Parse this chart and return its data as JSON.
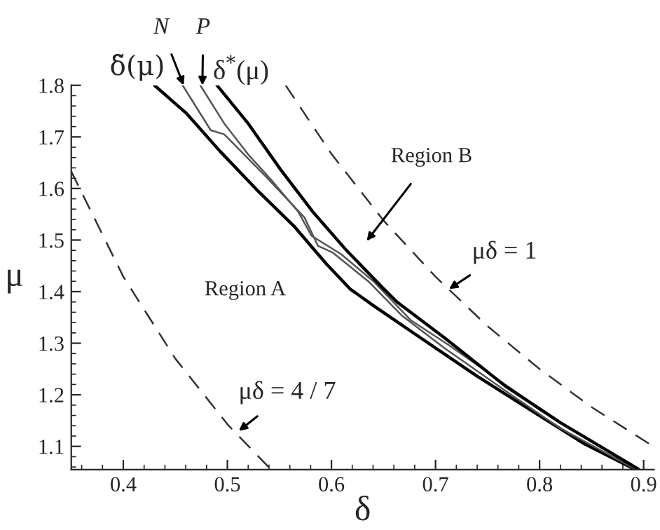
{
  "chart_data": {
    "type": "line",
    "xlabel": "δ",
    "ylabel": "μ",
    "xlim": [
      0.35,
      0.91
    ],
    "ylim": [
      1.055,
      1.8
    ],
    "xticks": [
      0.4,
      0.5,
      0.6,
      0.7,
      0.8,
      0.9
    ],
    "yticks": [
      1.1,
      1.2,
      1.3,
      1.4,
      1.5,
      1.6,
      1.7,
      1.8
    ],
    "grid": false,
    "legend": false,
    "marker": "none",
    "series": [
      {
        "color": "#000000",
        "line_style": "solid",
        "x": [
          0.43,
          0.461,
          0.493,
          0.528,
          0.564,
          0.595,
          0.618,
          0.641,
          0.686,
          0.74,
          0.798,
          0.843,
          0.891
        ],
        "values": [
          1.8,
          1.745,
          1.672,
          1.598,
          1.527,
          1.454,
          1.405,
          1.372,
          1.31,
          1.236,
          1.162,
          1.105,
          1.056
        ]
      },
      {
        "color": "#555555",
        "line_style": "solid",
        "x": [
          0.457,
          0.484,
          0.497,
          0.537,
          0.574,
          0.587,
          0.601,
          0.636,
          0.668,
          0.709,
          0.767,
          0.82,
          0.892
        ],
        "values": [
          1.8,
          1.713,
          1.705,
          1.623,
          1.544,
          1.489,
          1.476,
          1.419,
          1.353,
          1.29,
          1.208,
          1.135,
          1.056
        ]
      },
      {
        "color": "#555555",
        "line_style": "solid",
        "x": [
          0.474,
          0.497,
          0.52,
          0.542,
          0.568,
          0.581,
          0.609,
          0.641,
          0.676,
          0.713,
          0.771,
          0.825,
          0.893
        ],
        "values": [
          1.8,
          1.726,
          1.666,
          1.617,
          1.555,
          1.508,
          1.473,
          1.419,
          1.345,
          1.296,
          1.214,
          1.14,
          1.056
        ]
      },
      {
        "color": "#000000",
        "line_style": "solid",
        "x": [
          0.49,
          0.52,
          0.551,
          0.582,
          0.614,
          0.649,
          0.663,
          0.709,
          0.767,
          0.82,
          0.895
        ],
        "values": [
          1.8,
          1.726,
          1.637,
          1.555,
          1.481,
          1.408,
          1.38,
          1.31,
          1.217,
          1.146,
          1.056
        ]
      },
      {
        "color": "#333333",
        "line_style": "dashed",
        "x": [
          0.556,
          0.6,
          0.65,
          0.7,
          0.75,
          0.8,
          0.85,
          0.91
        ],
        "values": [
          1.8,
          1.667,
          1.538,
          1.429,
          1.333,
          1.25,
          1.176,
          1.099
        ]
      },
      {
        "color": "#333333",
        "line_style": "dashed",
        "x": [
          0.35,
          0.4,
          0.45,
          0.5,
          0.542
        ],
        "values": [
          1.633,
          1.429,
          1.27,
          1.143,
          1.055
        ]
      }
    ],
    "annotations": [
      {
        "text": "N",
        "x": 0.458,
        "y": 1.8
      },
      {
        "text": "P",
        "x": 0.476,
        "y": 1.8
      },
      "δ̃(μ)",
      "δ$^{*}$(μ)",
      "Region B",
      {
        "text": "μδ = 1",
        "x": 0.713,
        "y": 1.405
      },
      "Region A",
      {
        "text": "μδ = 4 / 7",
        "x": 0.511,
        "y": 1.13
      }
    ]
  }
}
